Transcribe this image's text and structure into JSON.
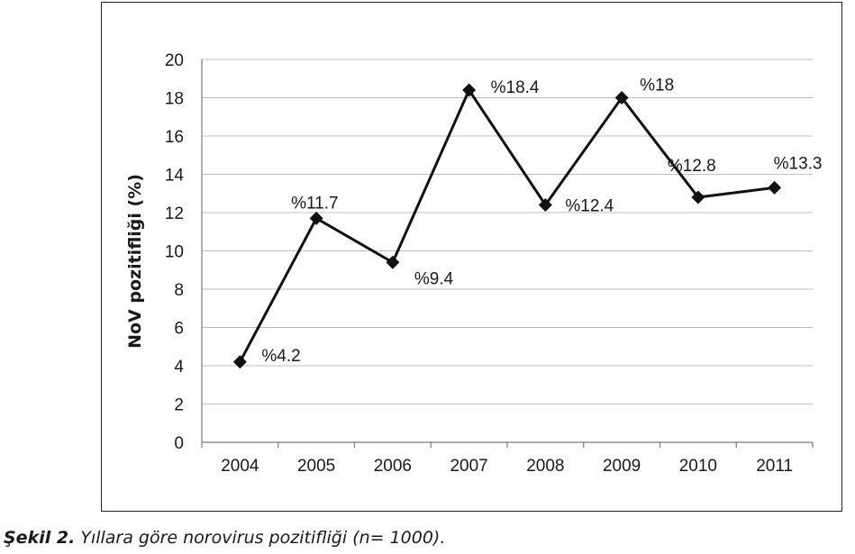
{
  "caption": {
    "label": "Şekil 2.",
    "text": " Yıllara göre norovirus pozitifliği (n= 1000)."
  },
  "chart_data": {
    "type": "line",
    "categories": [
      "2004",
      "2005",
      "2006",
      "2007",
      "2008",
      "2009",
      "2010",
      "2011"
    ],
    "series": [
      {
        "values": [
          4.2,
          11.7,
          9.4,
          18.4,
          12.4,
          18,
          12.8,
          13.3
        ]
      }
    ],
    "data_labels": [
      "%4.2",
      "%11.7",
      "%9.4",
      "%18.4",
      "%12.4",
      "%18",
      "%12.8",
      "%13.3"
    ],
    "ylabel": "NoV pozitifliği (%)",
    "xlabel": "",
    "ylim": [
      0,
      20
    ],
    "yticks": [
      0,
      2,
      4,
      6,
      8,
      10,
      12,
      14,
      16,
      18,
      20
    ],
    "grid": true,
    "marker": "diamond",
    "line_color": "#111111"
  }
}
